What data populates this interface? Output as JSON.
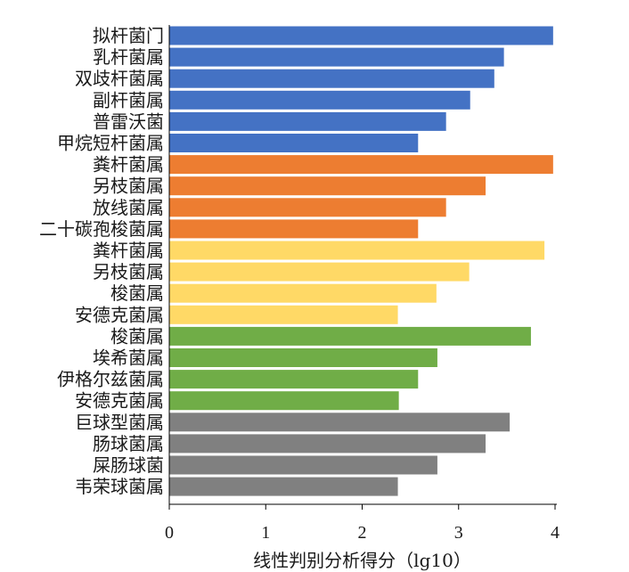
{
  "chart_data": {
    "type": "bar",
    "orientation": "horizontal",
    "title": "",
    "xlabel": "线性判别分析得分（lg10）",
    "ylabel": "",
    "xlim": [
      0,
      4
    ],
    "xticks": [
      "0",
      "1",
      "2",
      "3",
      "4"
    ],
    "grid": false,
    "legend": "none",
    "bars": [
      {
        "label": "拟杆菌门",
        "value": 3.98,
        "color": "#4472c4"
      },
      {
        "label": "乳杆菌属",
        "value": 3.47,
        "color": "#4472c4"
      },
      {
        "label": "双歧杆菌属",
        "value": 3.37,
        "color": "#4472c4"
      },
      {
        "label": "副杆菌属",
        "value": 3.12,
        "color": "#4472c4"
      },
      {
        "label": "普雷沃菌",
        "value": 2.87,
        "color": "#4472c4"
      },
      {
        "label": "甲烷短杆菌属",
        "value": 2.58,
        "color": "#4472c4"
      },
      {
        "label": "粪杆菌属",
        "value": 3.98,
        "color": "#ed7d31"
      },
      {
        "label": "另枝菌属",
        "value": 3.28,
        "color": "#ed7d31"
      },
      {
        "label": "放线菌属",
        "value": 2.87,
        "color": "#ed7d31"
      },
      {
        "label": "二十碳孢梭菌属",
        "value": 2.58,
        "color": "#ed7d31"
      },
      {
        "label": "粪杆菌属",
        "value": 3.89,
        "color": "#ffd966"
      },
      {
        "label": "另枝菌属",
        "value": 3.11,
        "color": "#ffd966"
      },
      {
        "label": "梭菌属",
        "value": 2.77,
        "color": "#ffd966"
      },
      {
        "label": "安德克菌属",
        "value": 2.37,
        "color": "#ffd966"
      },
      {
        "label": "梭菌属",
        "value": 3.75,
        "color": "#70ad47"
      },
      {
        "label": "埃希菌属",
        "value": 2.78,
        "color": "#70ad47"
      },
      {
        "label": "伊格尔兹菌属",
        "value": 2.58,
        "color": "#70ad47"
      },
      {
        "label": "安德克菌属",
        "value": 2.38,
        "color": "#70ad47"
      },
      {
        "label": "巨球型菌属",
        "value": 3.53,
        "color": "#808080"
      },
      {
        "label": "肠球菌属",
        "value": 3.28,
        "color": "#808080"
      },
      {
        "label": "屎肠球菌",
        "value": 2.78,
        "color": "#808080"
      },
      {
        "label": "韦荣球菌属",
        "value": 2.37,
        "color": "#808080"
      }
    ]
  }
}
